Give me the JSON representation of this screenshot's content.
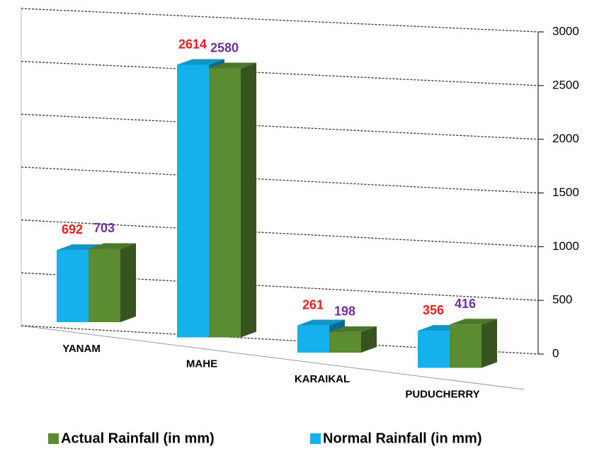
{
  "chart_data": {
    "type": "bar3d",
    "categories": [
      "YANAM",
      "MAHE",
      "KARAIKAL",
      "PUDUCHERRY"
    ],
    "series": [
      {
        "name": "Normal Rainfall (in mm)",
        "color": "#14b1ec",
        "label_color": "#ee1c1c",
        "values": [
          692,
          2614,
          261,
          356
        ]
      },
      {
        "name": "Actual Rainfall (in mm)",
        "color": "#5b8c32",
        "label_color": "#7030a0",
        "values": [
          703,
          2580,
          198,
          416
        ]
      }
    ],
    "legend_order": [
      1,
      0
    ],
    "ylim": [
      0,
      3000
    ],
    "yticks": [
      0,
      500,
      1000,
      1500,
      2000,
      2500,
      3000
    ],
    "grid": true
  }
}
